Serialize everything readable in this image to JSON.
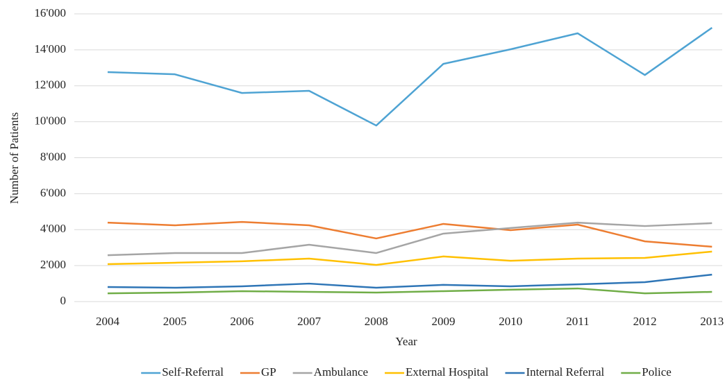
{
  "chart_data": {
    "type": "line",
    "x_label": "Year",
    "y_label": "Number of Patients",
    "categories": [
      "2004",
      "2005",
      "2006",
      "2007",
      "2008",
      "2009",
      "2010",
      "2011",
      "2012",
      "2013"
    ],
    "series": [
      {
        "name": "Self-Referral",
        "color": "#4ea3d3",
        "values": [
          12760,
          12640,
          11600,
          11720,
          9790,
          13220,
          14030,
          14920,
          12600,
          15230
        ]
      },
      {
        "name": "GP",
        "color": "#ed7d31",
        "values": [
          4390,
          4240,
          4430,
          4240,
          3510,
          4320,
          3970,
          4280,
          3350,
          3050
        ]
      },
      {
        "name": "Ambulance",
        "color": "#a5a5a5",
        "values": [
          2580,
          2700,
          2700,
          3160,
          2700,
          3780,
          4090,
          4390,
          4200,
          4360
        ]
      },
      {
        "name": "External Hospital",
        "color": "#ffc000",
        "values": [
          2080,
          2160,
          2240,
          2390,
          2040,
          2510,
          2270,
          2390,
          2430,
          2780
        ]
      },
      {
        "name": "Internal Referral",
        "color": "#2e75b6",
        "values": [
          810,
          770,
          850,
          1000,
          770,
          930,
          850,
          960,
          1080,
          1500
        ]
      },
      {
        "name": "Police",
        "color": "#70ad47",
        "values": [
          460,
          500,
          580,
          540,
          500,
          580,
          660,
          730,
          460,
          540
        ]
      }
    ],
    "ylim": [
      0,
      16000
    ],
    "yticks": [
      0,
      {
        "value": 2000,
        "label": "2'000"
      },
      {
        "value": 4000,
        "label": "4'000"
      },
      {
        "value": 6000,
        "label": "6'000"
      },
      {
        "value": 8000,
        "label": "8'000"
      },
      {
        "value": 10000,
        "label": "10'000"
      },
      {
        "value": 12000,
        "label": "12'000"
      },
      {
        "value": 14000,
        "label": "14'000"
      },
      {
        "value": 16000,
        "label": "16'000"
      }
    ],
    "grid": true,
    "legend": "bottom"
  }
}
